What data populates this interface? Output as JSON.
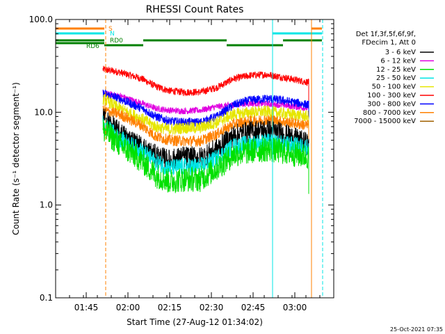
{
  "chart_data": {
    "type": "line",
    "title": "RHESSI Count Rates",
    "xlabel": "Start Time (27-Aug-12 01:34:02)",
    "ylabel": "Count Rate (s⁻¹ detector segment⁻¹)",
    "y_scale": "log",
    "ylim": [
      0.1,
      100
    ],
    "xlim": [
      "01:34",
      "03:14"
    ],
    "x_ticks": [
      "01:45",
      "02:00",
      "02:15",
      "02:30",
      "02:45",
      "03:00"
    ],
    "y_ticks": [
      "0.1",
      "1.0",
      "10.0",
      "100.0"
    ],
    "data_window": [
      "01:51",
      "03:05"
    ],
    "grid": false,
    "legend_position": "right",
    "legend_header": [
      "Det 1f,3f,5f,6f,9f,",
      "FDecim 1, Att 0"
    ],
    "footer_date": "25-Oct-2021 07:35",
    "series": [
      {
        "name": "3 - 6 keV",
        "color": "#000000",
        "x": [
          "01:51",
          "01:57",
          "02:05",
          "02:10",
          "02:15",
          "02:20",
          "02:26",
          "02:32",
          "02:38",
          "02:44",
          "02:50",
          "02:55",
          "03:05"
        ],
        "values": [
          8.8,
          6.0,
          4.2,
          3.4,
          3.0,
          3.3,
          3.2,
          4.0,
          5.6,
          6.2,
          6.4,
          6.0,
          4.5
        ]
      },
      {
        "name": "6 - 12 keV",
        "color": "#e000e0",
        "x": [
          "01:51",
          "01:57",
          "02:05",
          "02:10",
          "02:15",
          "02:20",
          "02:26",
          "02:32",
          "02:38",
          "02:44",
          "02:50",
          "02:55",
          "03:05"
        ],
        "values": [
          16,
          15,
          12.5,
          11,
          10.5,
          10.3,
          10.5,
          11.5,
          12,
          12.5,
          12.3,
          12,
          11
        ]
      },
      {
        "name": "12 - 25 keV",
        "color": "#00e000",
        "x": [
          "01:51",
          "01:57",
          "02:05",
          "02:10",
          "02:15",
          "02:20",
          "02:26",
          "02:32",
          "02:38",
          "02:44",
          "02:50",
          "02:55",
          "03:05"
        ],
        "values": [
          6.5,
          4.5,
          3.0,
          2.1,
          1.8,
          1.9,
          1.9,
          2.5,
          3.5,
          3.8,
          4.0,
          3.8,
          3.3
        ]
      },
      {
        "name": "25 - 50 keV",
        "color": "#00e6e6",
        "x": [
          "01:51",
          "01:57",
          "02:05",
          "02:10",
          "02:15",
          "02:20",
          "02:26",
          "02:32",
          "02:38",
          "02:44",
          "02:50",
          "02:55",
          "03:05"
        ],
        "values": [
          7.5,
          5.2,
          3.8,
          2.9,
          2.5,
          2.6,
          2.6,
          3.2,
          4.3,
          4.6,
          4.8,
          4.6,
          4.2
        ]
      },
      {
        "name": "50 - 100 keV",
        "color": "#e6e600",
        "x": [
          "01:51",
          "01:57",
          "02:05",
          "02:10",
          "02:15",
          "02:20",
          "02:26",
          "02:32",
          "02:38",
          "02:44",
          "02:50",
          "02:55",
          "03:05"
        ],
        "values": [
          14,
          11,
          8.5,
          7.0,
          6.5,
          6.8,
          6.8,
          7.8,
          9.5,
          10,
          10.2,
          9.8,
          9.0
        ]
      },
      {
        "name": "100 - 300 keV",
        "color": "#ff0000",
        "x": [
          "01:51",
          "01:57",
          "02:05",
          "02:10",
          "02:15",
          "02:20",
          "02:26",
          "02:32",
          "02:38",
          "02:44",
          "02:50",
          "02:55",
          "03:05"
        ],
        "values": [
          29,
          27,
          23,
          19,
          17,
          16.5,
          16.5,
          18.5,
          23,
          25,
          25.5,
          24,
          21
        ]
      },
      {
        "name": "300 - 800 keV",
        "color": "#0000ff",
        "x": [
          "01:51",
          "01:57",
          "02:05",
          "02:10",
          "02:15",
          "02:20",
          "02:26",
          "02:32",
          "02:38",
          "02:44",
          "02:50",
          "02:55",
          "03:05"
        ],
        "values": [
          16,
          14,
          11,
          9.0,
          8.0,
          7.8,
          7.8,
          9.0,
          12,
          13.5,
          14,
          13.5,
          12
        ]
      },
      {
        "name": "800 - 7000 keV",
        "color": "#ff8000",
        "x": [
          "01:51",
          "01:57",
          "02:05",
          "02:10",
          "02:15",
          "02:20",
          "02:26",
          "02:32",
          "02:38",
          "02:44",
          "02:50",
          "02:55",
          "03:05"
        ],
        "values": [
          10.5,
          9.5,
          7.2,
          5.5,
          5.0,
          4.9,
          4.9,
          5.8,
          7.5,
          8.0,
          8.3,
          8.0,
          7.2
        ]
      },
      {
        "name": "7000 - 15000 keV",
        "color": "#a06000",
        "x": [],
        "values": []
      }
    ],
    "state_bars": {
      "labels": [
        "S",
        "N",
        "RD0",
        "RD6"
      ],
      "colors": {
        "S": "#ff8000",
        "N": "#00e6e6",
        "RD": "#008000"
      }
    },
    "vlines": [
      {
        "x": "01:34",
        "color": "#00e6e6",
        "style": "solid"
      },
      {
        "x": "01:52",
        "color": "#ff8000",
        "style": "dashed"
      },
      {
        "x": "02:52",
        "color": "#00e6e6",
        "style": "solid"
      },
      {
        "x": "03:06",
        "color": "#ff8000",
        "style": "solid"
      },
      {
        "x": "03:10",
        "color": "#00e6e6",
        "style": "dashed"
      }
    ]
  }
}
